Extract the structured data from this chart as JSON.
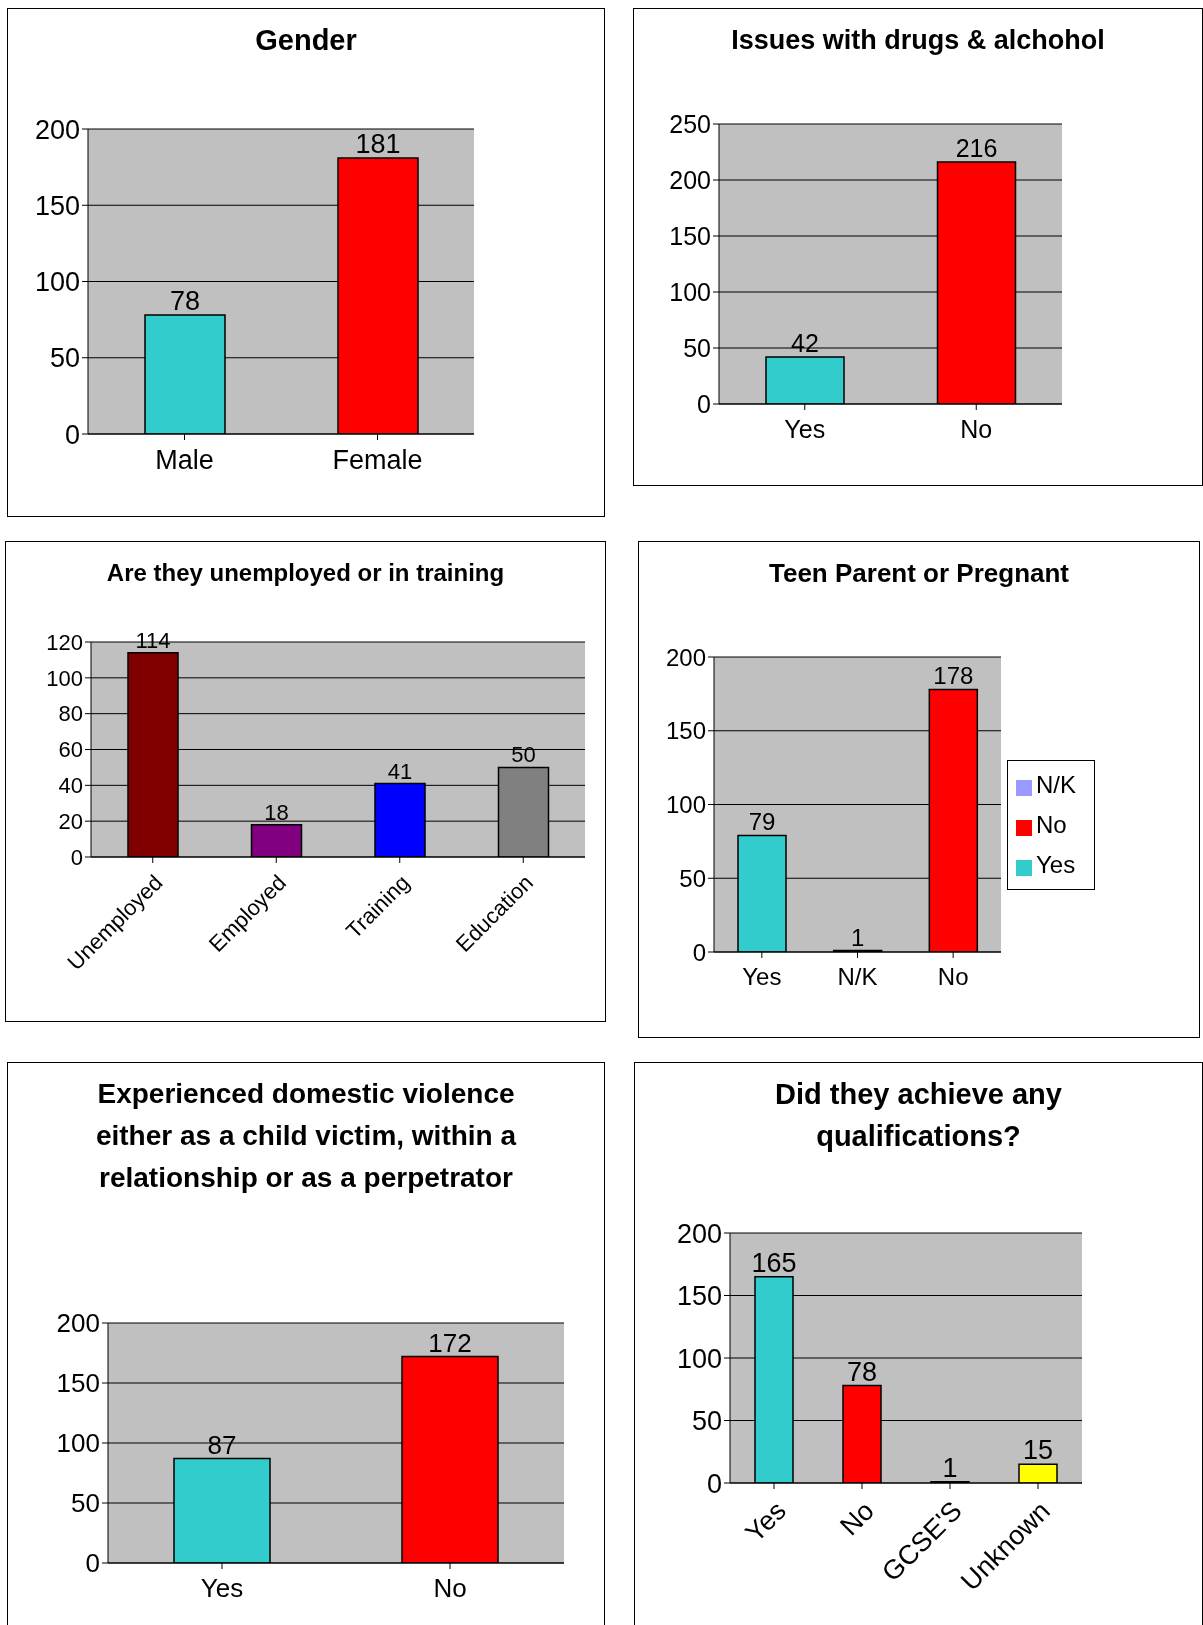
{
  "chart_data": [
    {
      "type": "bar",
      "title": "Gender",
      "categories": [
        "Male",
        "Female"
      ],
      "values": [
        78,
        181
      ],
      "colors": [
        "#33cccc",
        "#ff0000"
      ],
      "ylim": [
        0,
        200
      ],
      "yticks": [
        0,
        50,
        100,
        150,
        200
      ],
      "grid": "y",
      "data_labels": true
    },
    {
      "type": "bar",
      "title": "Issues with drugs & alchohol",
      "categories": [
        "Yes",
        "No"
      ],
      "values": [
        42,
        216
      ],
      "colors": [
        "#33cccc",
        "#ff0000"
      ],
      "ylim": [
        0,
        250
      ],
      "yticks": [
        0,
        50,
        100,
        150,
        200,
        250
      ],
      "grid": "y",
      "data_labels": true
    },
    {
      "type": "bar",
      "title": "Are they unemployed or in training",
      "categories": [
        "Unemployed",
        "Employed",
        "Training",
        "Education"
      ],
      "values": [
        114,
        18,
        41,
        50
      ],
      "colors": [
        "#800000",
        "#800080",
        "#0000ff",
        "#808080"
      ],
      "ylim": [
        0,
        120
      ],
      "yticks": [
        0,
        20,
        40,
        60,
        80,
        100,
        120
      ],
      "grid": "y",
      "data_labels": true
    },
    {
      "type": "bar",
      "title": "Teen Parent or Pregnant",
      "categories": [
        "Yes",
        "N/K",
        "No"
      ],
      "stacked": true,
      "series": [
        {
          "name": "Yes",
          "color": "#33cccc",
          "values": [
            79,
            null,
            null
          ]
        },
        {
          "name": "N/K",
          "color": "#9999ff",
          "values": [
            null,
            1,
            null
          ]
        },
        {
          "name": "No",
          "color": "#ff0000",
          "values": [
            null,
            null,
            178
          ]
        }
      ],
      "ylim": [
        0,
        200
      ],
      "yticks": [
        0,
        50,
        100,
        150,
        200
      ],
      "grid": "y",
      "data_labels": true,
      "legend": "right"
    },
    {
      "type": "bar",
      "title": "Experienced domestic violence either as a child victim, within a relationship or as a perpetrator",
      "categories": [
        "Yes",
        "No"
      ],
      "values": [
        87,
        172
      ],
      "colors": [
        "#33cccc",
        "#ff0000"
      ],
      "ylim": [
        0,
        200
      ],
      "yticks": [
        0,
        50,
        100,
        150,
        200
      ],
      "grid": "y",
      "data_labels": true
    },
    {
      "type": "bar",
      "title": "Did they achieve any qualifications?",
      "categories": [
        "Yes",
        "No",
        "GCSE'S",
        "Unknown"
      ],
      "values": [
        165,
        78,
        1,
        15
      ],
      "colors": [
        "#33cccc",
        "#ff0000",
        "#9999ff",
        "#ffff00"
      ],
      "ylim": [
        0,
        200
      ],
      "yticks": [
        0,
        50,
        100,
        150,
        200
      ],
      "grid": "y",
      "data_labels": true
    }
  ]
}
